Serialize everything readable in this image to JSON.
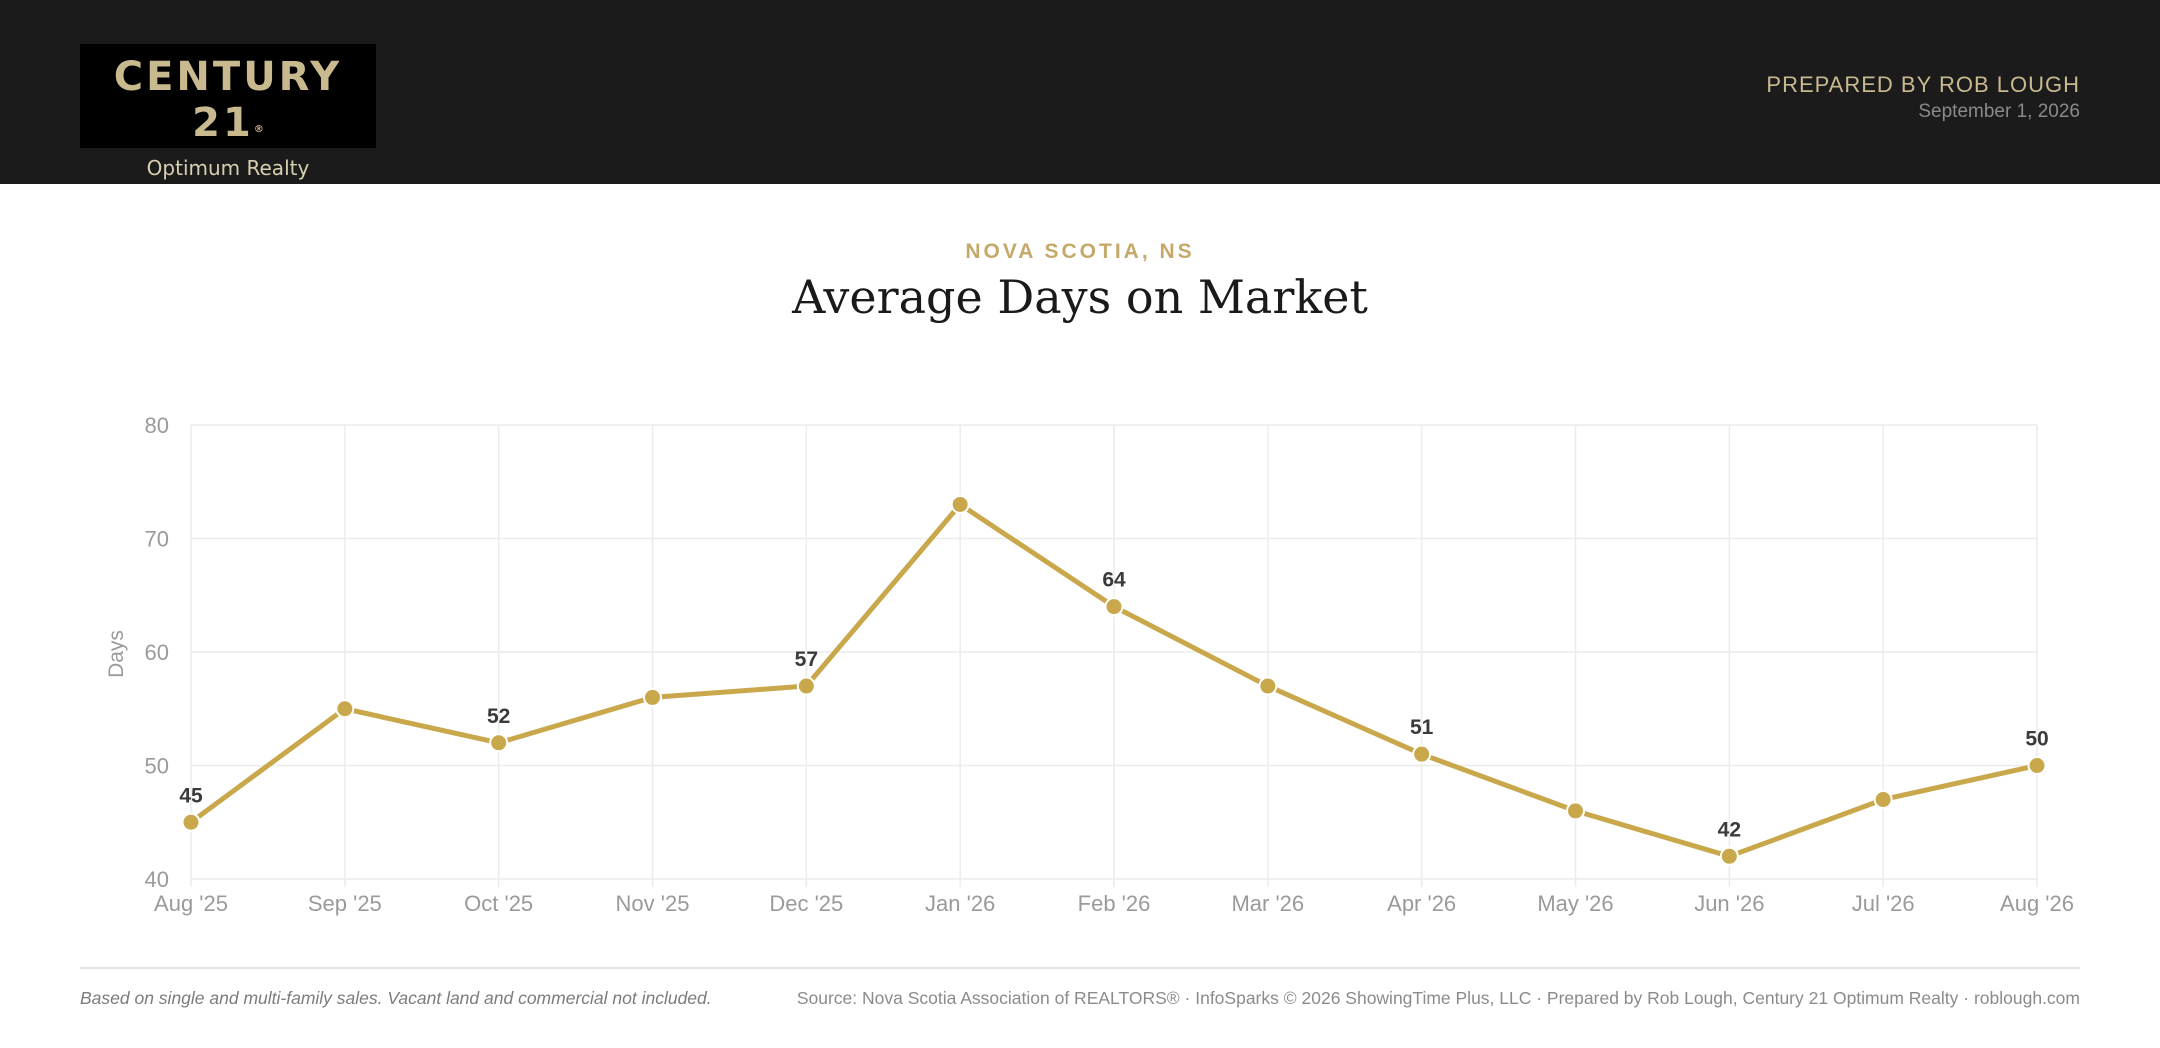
{
  "header": {
    "logo": {
      "brand": "CENTURY 21",
      "registered": "®",
      "office": "Optimum Realty"
    },
    "prepared_by": "PREPARED BY ROB LOUGH",
    "date": "September 1, 2026",
    "background_color": "#1b1b1b",
    "accent_color": "#c9b98f"
  },
  "region": "NOVA SCOTIA, NS",
  "title": "Average Days on Market",
  "chart_data": {
    "type": "line",
    "title": "Average Days on Market",
    "xlabel": "",
    "ylabel": "Days",
    "ylim": [
      40,
      80
    ],
    "yticks": [
      40,
      50,
      60,
      70,
      80
    ],
    "categories": [
      "Aug '25",
      "Sep '25",
      "Oct '25",
      "Nov '25",
      "Dec '25",
      "Jan '26",
      "Feb '26",
      "Mar '26",
      "Apr '26",
      "May '26",
      "Jun '26",
      "Jul '26",
      "Aug '26"
    ],
    "series": [
      {
        "values": [
          45,
          55,
          52,
          56,
          57,
          73,
          64,
          57,
          51,
          46,
          42,
          47,
          50
        ],
        "labeled": [
          true,
          false,
          true,
          false,
          true,
          false,
          true,
          false,
          true,
          false,
          true,
          false,
          true
        ],
        "color": "#c9a74b"
      }
    ],
    "grid": true,
    "legend": "none"
  },
  "footer": {
    "note": "Based on single and multi-family sales. Vacant land and commercial not included.",
    "source": "Source: Nova Scotia Association of REALTORS® · InfoSparks © 2026 ShowingTime Plus, LLC · Prepared by Rob Lough, Century 21 Optimum Realty · roblough.com"
  }
}
